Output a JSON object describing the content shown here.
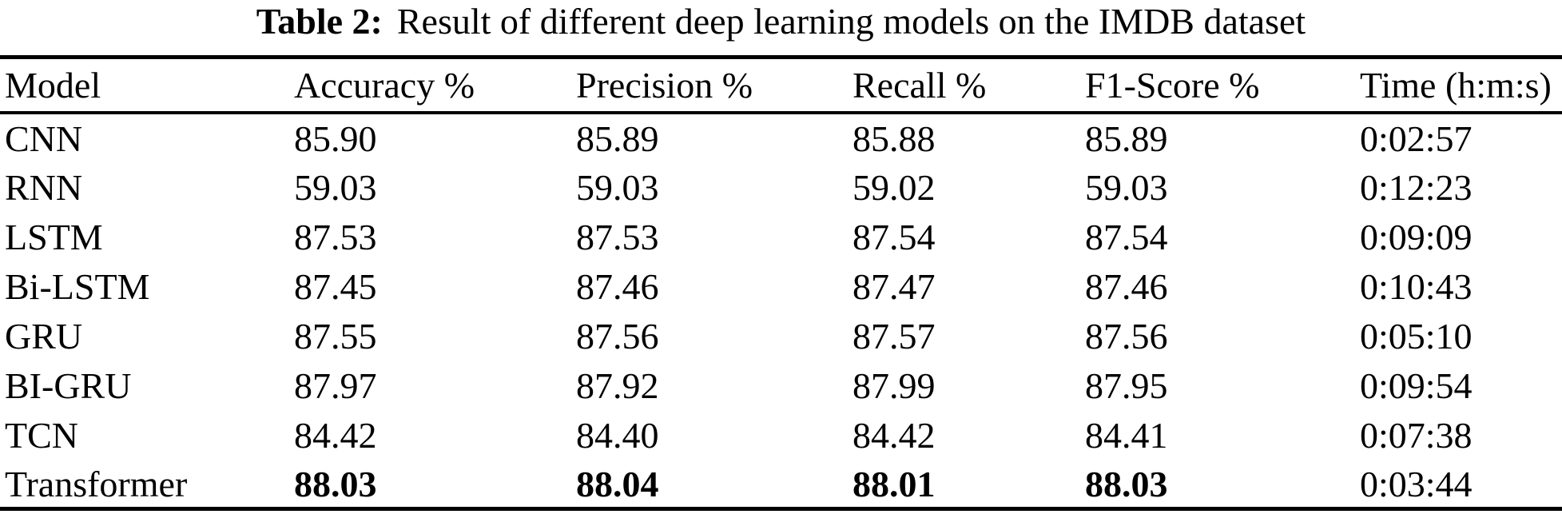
{
  "caption": {
    "label": "Table 2:",
    "text": "Result of different deep learning models on the IMDB dataset"
  },
  "table": {
    "columns": [
      "Model",
      "Accuracy %",
      "Precision %",
      "Recall %",
      "F1-Score %",
      "Time (h:m:s)"
    ],
    "rows": [
      {
        "model": "CNN",
        "accuracy": "85.90",
        "precision": "85.89",
        "recall": "85.88",
        "f1_score": "85.89",
        "time": "0:02:57",
        "bold_metrics": false
      },
      {
        "model": "RNN",
        "accuracy": "59.03",
        "precision": "59.03",
        "recall": "59.02",
        "f1_score": "59.03",
        "time": "0:12:23",
        "bold_metrics": false
      },
      {
        "model": "LSTM",
        "accuracy": "87.53",
        "precision": "87.53",
        "recall": "87.54",
        "f1_score": "87.54",
        "time": "0:09:09",
        "bold_metrics": false
      },
      {
        "model": "Bi-LSTM",
        "accuracy": "87.45",
        "precision": "87.46",
        "recall": "87.47",
        "f1_score": "87.46",
        "time": "0:10:43",
        "bold_metrics": false
      },
      {
        "model": "GRU",
        "accuracy": "87.55",
        "precision": "87.56",
        "recall": "87.57",
        "f1_score": "87.56",
        "time": "0:05:10",
        "bold_metrics": false
      },
      {
        "model": "BI-GRU",
        "accuracy": "87.97",
        "precision": "87.92",
        "recall": "87.99",
        "f1_score": "87.95",
        "time": "0:09:54",
        "bold_metrics": false
      },
      {
        "model": "TCN",
        "accuracy": "84.42",
        "precision": "84.40",
        "recall": "84.42",
        "f1_score": "84.41",
        "time": "0:07:38",
        "bold_metrics": false
      },
      {
        "model": "Transformer",
        "accuracy": "88.03",
        "precision": "88.04",
        "recall": "88.01",
        "f1_score": "88.03",
        "time": "0:03:44",
        "bold_metrics": true
      }
    ]
  },
  "colors": {
    "text": "#000000",
    "background": "#ffffff",
    "rule": "#000000"
  }
}
